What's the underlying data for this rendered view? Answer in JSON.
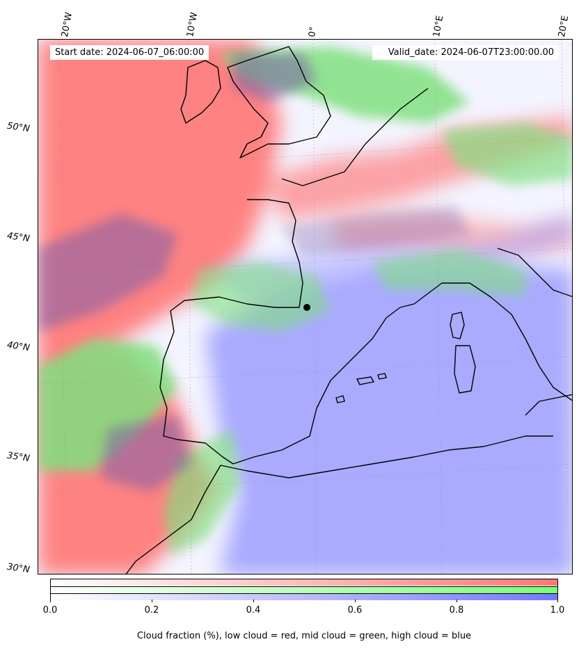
{
  "start_date": "Start date: 2024-06-07_06:00:00",
  "valid_date": "Valid_date: 2024-06-07T23:00:00.00",
  "lon_labels": [
    "20°W",
    "10°W",
    "0°",
    "10°E",
    "20°E"
  ],
  "lat_labels": [
    "50°N",
    "45°N",
    "40°N",
    "35°N",
    "30°N"
  ],
  "colorbar": {
    "ticks": [
      "0.0",
      "0.2",
      "0.4",
      "0.6",
      "0.8",
      "1.0"
    ],
    "caption": "Cloud fraction (%), low cloud = red, mid cloud = green, high cloud = blue",
    "low_color": "#ff7777",
    "mid_color": "#77ff77",
    "high_color": "#7777ff"
  },
  "colors": {
    "low": "#ff7b7b",
    "mid": "#7fe07f",
    "high": "#8888ff",
    "mix": "#7d5fa8",
    "coast": "#000000"
  }
}
